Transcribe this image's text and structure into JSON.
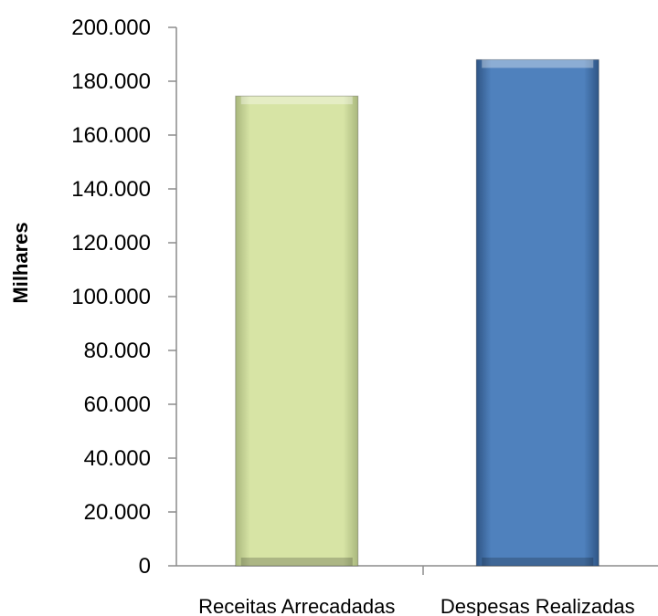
{
  "chart_data": {
    "type": "bar",
    "title": "",
    "xlabel": "",
    "ylabel": "Milhares",
    "ylim": [
      0,
      200000
    ],
    "yticks": [
      0,
      20000,
      40000,
      60000,
      80000,
      100000,
      120000,
      140000,
      160000,
      180000,
      200000
    ],
    "ytick_labels": [
      "0",
      "20.000",
      "40.000",
      "60.000",
      "80.000",
      "100.000",
      "120.000",
      "140.000",
      "160.000",
      "180.000",
      "200.000"
    ],
    "categories": [
      "Receitas Arrecadadas",
      "Despesas Realizadas"
    ],
    "values": [
      174500,
      188000
    ],
    "colors": [
      "#d7e4a5",
      "#4f81bd"
    ],
    "grid": false,
    "legend": "none"
  }
}
